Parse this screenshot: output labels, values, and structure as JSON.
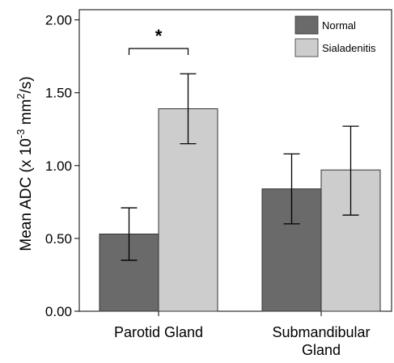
{
  "chart_data": {
    "type": "bar",
    "categories": [
      "Parotid Gland",
      "Submandibular Gland"
    ],
    "series": [
      {
        "name": "Normal",
        "color": "#6a6a6a",
        "values": [
          0.53,
          0.84
        ],
        "error_low": [
          0.35,
          0.6
        ],
        "error_high": [
          0.71,
          1.08
        ]
      },
      {
        "name": "Sialadenitis",
        "color": "#cdcdcd",
        "values": [
          1.39,
          0.97
        ],
        "error_low": [
          1.15,
          0.66
        ],
        "error_high": [
          1.63,
          1.27
        ]
      }
    ],
    "ylabel_main": "Mean ADC (x 10",
    "ylabel_exp1": "-3",
    "ylabel_mid": " mm",
    "ylabel_exp2": "2",
    "ylabel_tail": "/s)",
    "yticks": [
      "0.00",
      "0.50",
      "1.00",
      "1.50",
      "2.00"
    ],
    "ytick_values": [
      0,
      0.5,
      1.0,
      1.5,
      2.0
    ],
    "ylim": [
      0,
      2.07
    ],
    "legend_position": "top-right",
    "annotations": [
      {
        "text": "*",
        "between": [
          "Parotid Gland: Normal",
          "Parotid Gland: Sialadenitis"
        ]
      }
    ],
    "grid": false
  }
}
